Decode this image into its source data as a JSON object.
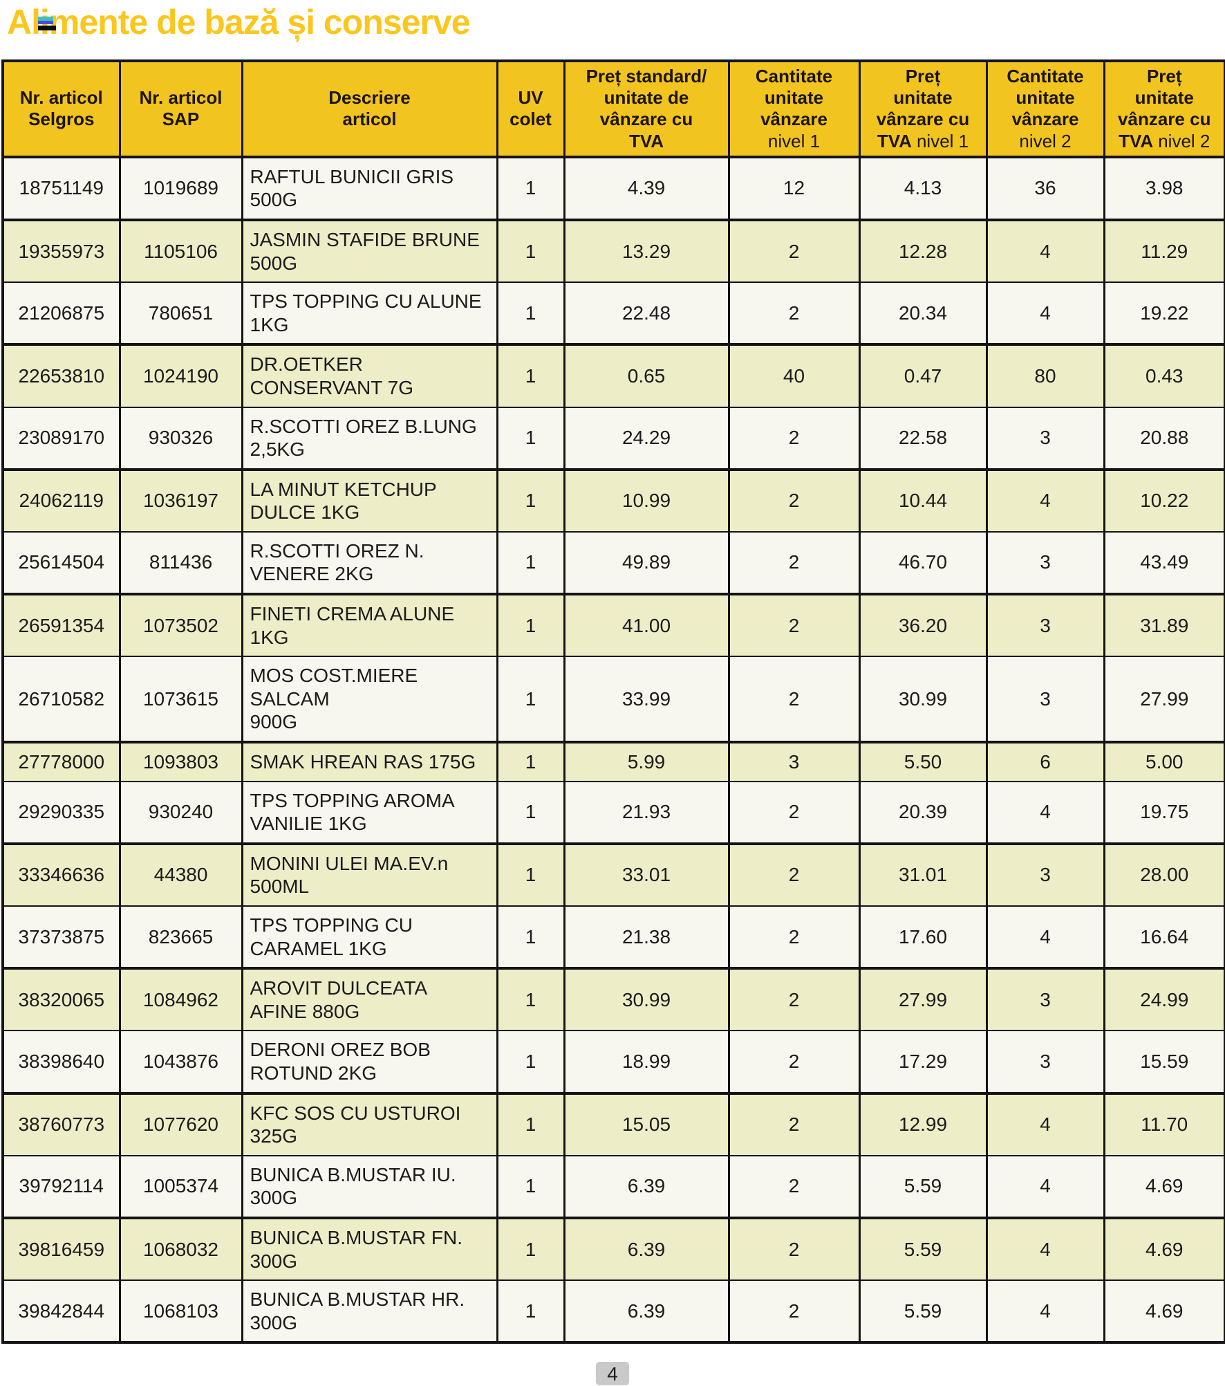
{
  "title": "Alimente de bază și conserve",
  "page_number": "4",
  "colors": {
    "title_text": "#fbc61d",
    "header_background": "#f2c41f",
    "row_light": "#f8f7ef",
    "row_shaded": "#ededc8",
    "border": "#141414",
    "page_badge": "#c9c9c9"
  },
  "icons": [
    {
      "name": "glitch-stripe-icon",
      "stripes": [
        "#3cc2be",
        "#4a4ed6",
        "#0c0c0c"
      ]
    }
  ],
  "table": {
    "headers": [
      {
        "id": "nr-articol-selgros",
        "lines": [
          [
            {
              "t": "Nr. articol",
              "b": true
            }
          ],
          [
            {
              "t": "Selgros",
              "b": true
            }
          ]
        ]
      },
      {
        "id": "nr-articol-sap",
        "lines": [
          [
            {
              "t": "Nr. articol",
              "b": true
            }
          ],
          [
            {
              "t": "SAP",
              "b": true
            }
          ]
        ]
      },
      {
        "id": "descriere-articol",
        "lines": [
          [
            {
              "t": "Descriere",
              "b": true
            }
          ],
          [
            {
              "t": "articol",
              "b": true
            }
          ]
        ]
      },
      {
        "id": "uv-colet",
        "lines": [
          [
            {
              "t": "UV",
              "b": true
            }
          ],
          [
            {
              "t": "colet",
              "b": true
            }
          ]
        ]
      },
      {
        "id": "pret-standard",
        "lines": [
          [
            {
              "t": "Preț standard/",
              "b": true
            }
          ],
          [
            {
              "t": "unitate de",
              "b": true
            }
          ],
          [
            {
              "t": "vânzare cu",
              "b": true
            }
          ],
          [
            {
              "t": "TVA",
              "b": true
            }
          ]
        ]
      },
      {
        "id": "cantitate-nivel-1",
        "lines": [
          [
            {
              "t": "Cantitate",
              "b": true
            }
          ],
          [
            {
              "t": "unitate",
              "b": true
            }
          ],
          [
            {
              "t": "vânzare",
              "b": true
            }
          ],
          [
            {
              "t": "nivel 1",
              "b": false
            }
          ]
        ]
      },
      {
        "id": "pret-nivel-1",
        "lines": [
          [
            {
              "t": "Preț",
              "b": true
            }
          ],
          [
            {
              "t": "unitate",
              "b": true
            }
          ],
          [
            {
              "t": "vânzare cu",
              "b": true
            }
          ],
          [
            {
              "t": "TVA",
              "b": true
            },
            {
              "t": "nivel 1",
              "b": false
            }
          ]
        ]
      },
      {
        "id": "cantitate-nivel-2",
        "lines": [
          [
            {
              "t": "Cantitate",
              "b": true
            }
          ],
          [
            {
              "t": "unitate",
              "b": true
            }
          ],
          [
            {
              "t": "vânzare",
              "b": true
            }
          ],
          [
            {
              "t": "nivel 2",
              "b": false
            }
          ]
        ]
      },
      {
        "id": "pret-nivel-2",
        "lines": [
          [
            {
              "t": "Preț",
              "b": true
            }
          ],
          [
            {
              "t": "unitate",
              "b": true
            }
          ],
          [
            {
              "t": "vânzare cu",
              "b": true
            }
          ],
          [
            {
              "t": "TVA",
              "b": true
            },
            {
              "t": "nivel 2",
              "b": false
            }
          ]
        ]
      }
    ],
    "rows": [
      {
        "selgros": "18751149",
        "sap": "1019689",
        "descriere": "RAFTUL BUNICII GRIS\n500G",
        "uv": "1",
        "pret_standard": "4.39",
        "cant_nivel1": "12",
        "pret_nivel1": "4.13",
        "cant_nivel2": "36",
        "pret_nivel2": "3.98"
      },
      {
        "selgros": "19355973",
        "sap": "1105106",
        "descriere": "JASMIN STAFIDE BRUNE\n500G",
        "uv": "1",
        "pret_standard": "13.29",
        "cant_nivel1": "2",
        "pret_nivel1": "12.28",
        "cant_nivel2": "4",
        "pret_nivel2": "11.29"
      },
      {
        "selgros": "21206875",
        "sap": "780651",
        "descriere": "TPS TOPPING CU ALUNE\n1KG",
        "uv": "1",
        "pret_standard": "22.48",
        "cant_nivel1": "2",
        "pret_nivel1": "20.34",
        "cant_nivel2": "4",
        "pret_nivel2": "19.22"
      },
      {
        "selgros": "22653810",
        "sap": "1024190",
        "descriere": "DR.OETKER\nCONSERVANT 7G",
        "uv": "1",
        "pret_standard": "0.65",
        "cant_nivel1": "40",
        "pret_nivel1": "0.47",
        "cant_nivel2": "80",
        "pret_nivel2": "0.43"
      },
      {
        "selgros": "23089170",
        "sap": "930326",
        "descriere": "R.SCOTTI OREZ B.LUNG\n2,5KG",
        "uv": "1",
        "pret_standard": "24.29",
        "cant_nivel1": "2",
        "pret_nivel1": "22.58",
        "cant_nivel2": "3",
        "pret_nivel2": "20.88"
      },
      {
        "selgros": "24062119",
        "sap": "1036197",
        "descriere": "LA MINUT KETCHUP\nDULCE 1KG",
        "uv": "1",
        "pret_standard": "10.99",
        "cant_nivel1": "2",
        "pret_nivel1": "10.44",
        "cant_nivel2": "4",
        "pret_nivel2": "10.22"
      },
      {
        "selgros": "25614504",
        "sap": "811436",
        "descriere": "R.SCOTTI OREZ N.\nVENERE 2KG",
        "uv": "1",
        "pret_standard": "49.89",
        "cant_nivel1": "2",
        "pret_nivel1": "46.70",
        "cant_nivel2": "3",
        "pret_nivel2": "43.49"
      },
      {
        "selgros": "26591354",
        "sap": "1073502",
        "descriere": "FINETI CREMA ALUNE\n1KG",
        "uv": "1",
        "pret_standard": "41.00",
        "cant_nivel1": "2",
        "pret_nivel1": "36.20",
        "cant_nivel2": "3",
        "pret_nivel2": "31.89"
      },
      {
        "selgros": "26710582",
        "sap": "1073615",
        "descriere": "MOS COST.MIERE SALCAM\n900G",
        "uv": "1",
        "pret_standard": "33.99",
        "cant_nivel1": "2",
        "pret_nivel1": "30.99",
        "cant_nivel2": "3",
        "pret_nivel2": "27.99"
      },
      {
        "selgros": "27778000",
        "sap": "1093803",
        "descriere": "SMAK HREAN RAS 175G",
        "uv": "1",
        "pret_standard": "5.99",
        "cant_nivel1": "3",
        "pret_nivel1": "5.50",
        "cant_nivel2": "6",
        "pret_nivel2": "5.00"
      },
      {
        "selgros": "29290335",
        "sap": "930240",
        "descriere": "TPS TOPPING AROMA\nVANILIE 1KG",
        "uv": "1",
        "pret_standard": "21.93",
        "cant_nivel1": "2",
        "pret_nivel1": "20.39",
        "cant_nivel2": "4",
        "pret_nivel2": "19.75"
      },
      {
        "selgros": "33346636",
        "sap": "44380",
        "descriere": "MONINI ULEI MA.EV.n\n500ML",
        "uv": "1",
        "pret_standard": "33.01",
        "cant_nivel1": "2",
        "pret_nivel1": "31.01",
        "cant_nivel2": "3",
        "pret_nivel2": "28.00"
      },
      {
        "selgros": "37373875",
        "sap": "823665",
        "descriere": "TPS TOPPING CU\nCARAMEL 1KG",
        "uv": "1",
        "pret_standard": "21.38",
        "cant_nivel1": "2",
        "pret_nivel1": "17.60",
        "cant_nivel2": "4",
        "pret_nivel2": "16.64"
      },
      {
        "selgros": "38320065",
        "sap": "1084962",
        "descriere": "AROVIT DULCEATA\nAFINE 880G",
        "uv": "1",
        "pret_standard": "30.99",
        "cant_nivel1": "2",
        "pret_nivel1": "27.99",
        "cant_nivel2": "3",
        "pret_nivel2": "24.99"
      },
      {
        "selgros": "38398640",
        "sap": "1043876",
        "descriere": "DERONI OREZ BOB\nROTUND 2KG",
        "uv": "1",
        "pret_standard": "18.99",
        "cant_nivel1": "2",
        "pret_nivel1": "17.29",
        "cant_nivel2": "3",
        "pret_nivel2": "15.59"
      },
      {
        "selgros": "38760773",
        "sap": "1077620",
        "descriere": "KFC SOS CU USTUROI\n325G",
        "uv": "1",
        "pret_standard": "15.05",
        "cant_nivel1": "2",
        "pret_nivel1": "12.99",
        "cant_nivel2": "4",
        "pret_nivel2": "11.70"
      },
      {
        "selgros": "39792114",
        "sap": "1005374",
        "descriere": "BUNICA B.MUSTAR IU.\n300G",
        "uv": "1",
        "pret_standard": "6.39",
        "cant_nivel1": "2",
        "pret_nivel1": "5.59",
        "cant_nivel2": "4",
        "pret_nivel2": "4.69"
      },
      {
        "selgros": "39816459",
        "sap": "1068032",
        "descriere": "BUNICA B.MUSTAR FN.\n300G",
        "uv": "1",
        "pret_standard": "6.39",
        "cant_nivel1": "2",
        "pret_nivel1": "5.59",
        "cant_nivel2": "4",
        "pret_nivel2": "4.69"
      },
      {
        "selgros": "39842844",
        "sap": "1068103",
        "descriere": "BUNICA B.MUSTAR HR.\n300G",
        "uv": "1",
        "pret_standard": "6.39",
        "cant_nivel1": "2",
        "pret_nivel1": "5.59",
        "cant_nivel2": "4",
        "pret_nivel2": "4.69"
      }
    ]
  }
}
